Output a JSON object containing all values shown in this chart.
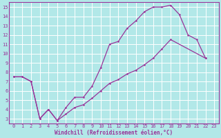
{
  "xlabel": "Windchill (Refroidissement éolien,°C)",
  "bg_color": "#b2e8e8",
  "grid_color": "#ffffff",
  "line_color": "#993399",
  "xlim": [
    -0.5,
    23.5
  ],
  "ylim": [
    2.5,
    15.5
  ],
  "xticks": [
    0,
    1,
    2,
    3,
    4,
    5,
    6,
    7,
    8,
    9,
    10,
    11,
    12,
    13,
    14,
    15,
    16,
    17,
    18,
    19,
    20,
    21,
    22,
    23
  ],
  "yticks": [
    3,
    4,
    5,
    6,
    7,
    8,
    9,
    10,
    11,
    12,
    13,
    14,
    15
  ],
  "upper_x": [
    0,
    1,
    2,
    3,
    4,
    5,
    6,
    7,
    8,
    9,
    10,
    11,
    12,
    13,
    14,
    15,
    16,
    17,
    18,
    19,
    20,
    21,
    22
  ],
  "upper_y": [
    7.5,
    7.5,
    7.0,
    3.0,
    4.0,
    2.8,
    4.2,
    5.3,
    5.3,
    6.5,
    8.5,
    11.0,
    11.3,
    12.7,
    13.5,
    14.5,
    15.0,
    15.0,
    15.2,
    14.2,
    12.0,
    11.5,
    9.5
  ],
  "lower_x": [
    0,
    1,
    2,
    3,
    4,
    5,
    6,
    7,
    8,
    9,
    10,
    11,
    12,
    13,
    14,
    15,
    16,
    17,
    18,
    22
  ],
  "lower_y": [
    7.5,
    7.5,
    7.0,
    3.0,
    4.0,
    2.8,
    3.5,
    4.2,
    4.5,
    5.2,
    6.0,
    6.8,
    7.2,
    7.8,
    8.2,
    8.8,
    9.5,
    10.5,
    11.5,
    9.5
  ]
}
